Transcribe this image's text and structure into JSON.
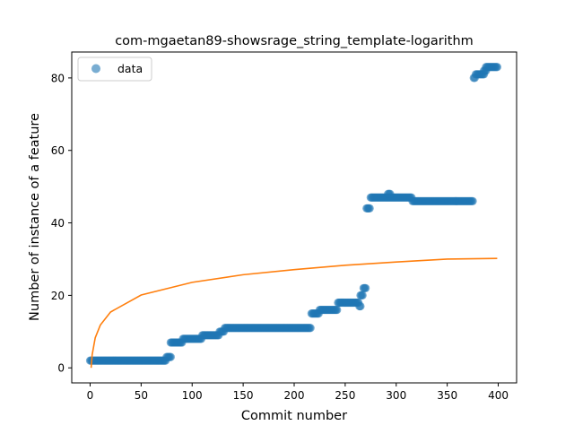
{
  "chart_data": {
    "type": "scatter",
    "title": "com-mgaetan89-showsrage_string_template-logarithm",
    "xlabel": "Commit number",
    "ylabel": "Number of instance of a feature",
    "xlim": [
      -18,
      418
    ],
    "ylim": [
      -4.15,
      87.15
    ],
    "xticks": [
      0,
      50,
      100,
      150,
      200,
      250,
      300,
      350,
      400
    ],
    "yticks": [
      0,
      20,
      40,
      60,
      80
    ],
    "legend": {
      "placement": "top-left",
      "entries": [
        "data"
      ]
    },
    "grid": false,
    "colors": {
      "scatter": "#1f77b4",
      "fit": "#ff7f0e"
    },
    "series": [
      {
        "name": "data",
        "kind": "scatter",
        "segments": [
          {
            "x_start": 0,
            "x_end": 74,
            "y": 2
          },
          {
            "x_start": 75,
            "x_end": 79,
            "y": 3
          },
          {
            "x_start": 79,
            "x_end": 90,
            "y": 7
          },
          {
            "x_start": 91,
            "x_end": 109,
            "y": 8
          },
          {
            "x_start": 110,
            "x_end": 126,
            "y": 9
          },
          {
            "x_start": 127,
            "x_end": 131,
            "y": 10
          },
          {
            "x_start": 132,
            "x_end": 216,
            "y": 11
          },
          {
            "x_start": 217,
            "x_end": 224,
            "y": 15
          },
          {
            "x_start": 225,
            "x_end": 242,
            "y": 16
          },
          {
            "x_start": 243,
            "x_end": 263,
            "y": 18
          },
          {
            "x_start": 264,
            "x_end": 265,
            "y": 17
          },
          {
            "x_start": 265,
            "x_end": 267,
            "y": 20
          },
          {
            "x_start": 268,
            "x_end": 270,
            "y": 22
          },
          {
            "x_start": 271,
            "x_end": 274,
            "y": 44
          },
          {
            "x_start": 275,
            "x_end": 315,
            "y": 47
          },
          {
            "x_start": 292,
            "x_end": 294,
            "y": 48
          },
          {
            "x_start": 316,
            "x_end": 375,
            "y": 46
          },
          {
            "x_start": 376,
            "x_end": 377,
            "y": 80
          },
          {
            "x_start": 378,
            "x_end": 381,
            "y": 81
          },
          {
            "x_start": 382,
            "x_end": 386,
            "y": 81
          },
          {
            "x_start": 386,
            "x_end": 388,
            "y": 82
          },
          {
            "x_start": 388,
            "x_end": 399,
            "y": 83
          }
        ]
      },
      {
        "kind": "line",
        "function": "logarithm",
        "points": [
          [
            1,
            0
          ],
          [
            2,
            3.6
          ],
          [
            5,
            8.3
          ],
          [
            10,
            11.8
          ],
          [
            20,
            15.4
          ],
          [
            50,
            20.1
          ],
          [
            100,
            23.6
          ],
          [
            150,
            25.7
          ],
          [
            200,
            27.1
          ],
          [
            250,
            28.3
          ],
          [
            300,
            29.2
          ],
          [
            350,
            30.0
          ],
          [
            399,
            30.2
          ]
        ]
      }
    ]
  }
}
